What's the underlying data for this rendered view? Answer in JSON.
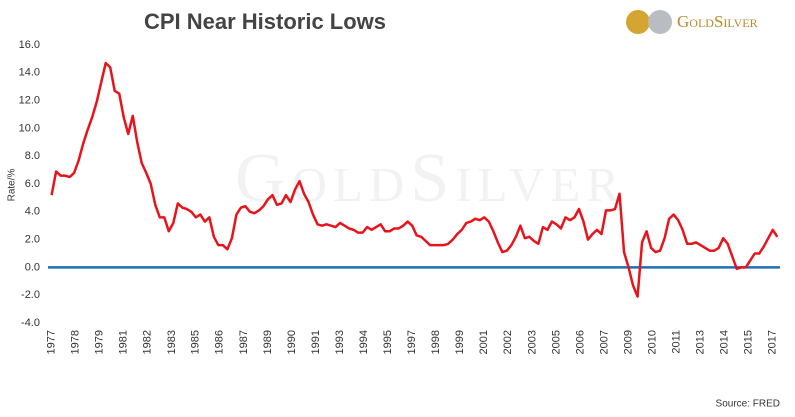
{
  "chart_data": {
    "type": "line",
    "title": "CPI Near Historic Lows",
    "y_label": "Rate/%",
    "source": "Source: FRED",
    "logo": "GoldSilver",
    "watermark": "GoldSilver",
    "color": "#e8141c",
    "zero_line_color": "#1f6fb5",
    "x": [
      1977,
      1977.25,
      1977.5,
      1977.75,
      1978,
      1978.25,
      1978.5,
      1978.75,
      1979,
      1979.25,
      1979.5,
      1979.75,
      1980,
      1980.25,
      1980.5,
      1980.75,
      1981,
      1981.25,
      1981.5,
      1981.75,
      1982,
      1982.25,
      1982.5,
      1982.75,
      1983,
      1983.25,
      1983.5,
      1983.75,
      1984,
      1984.25,
      1984.5,
      1984.75,
      1985,
      1985.25,
      1985.5,
      1985.75,
      1986,
      1986.25,
      1986.5,
      1986.75,
      1987,
      1987.25,
      1987.5,
      1987.75,
      1988,
      1988.25,
      1988.5,
      1988.75,
      1989,
      1989.25,
      1989.5,
      1989.75,
      1990,
      1990.25,
      1990.5,
      1990.75,
      1991,
      1991.25,
      1991.5,
      1991.75,
      1992,
      1992.25,
      1992.5,
      1992.75,
      1993,
      1993.25,
      1993.5,
      1993.75,
      1994,
      1994.25,
      1994.5,
      1994.75,
      1995,
      1995.25,
      1995.5,
      1995.75,
      1996,
      1996.25,
      1996.5,
      1996.75,
      1997,
      1997.25,
      1997.5,
      1997.75,
      1998,
      1998.25,
      1998.5,
      1998.75,
      1999,
      1999.25,
      1999.5,
      1999.75,
      2000,
      2000.25,
      2000.5,
      2000.75,
      2001,
      2001.25,
      2001.5,
      2001.75,
      2002,
      2002.25,
      2002.5,
      2002.75,
      2003,
      2003.25,
      2003.5,
      2003.75,
      2004,
      2004.25,
      2004.5,
      2004.75,
      2005,
      2005.25,
      2005.5,
      2005.75,
      2006,
      2006.25,
      2006.5,
      2006.75,
      2007,
      2007.25,
      2007.5,
      2007.75,
      2008,
      2008.25,
      2008.5,
      2008.75,
      2009,
      2009.25,
      2009.5,
      2009.75,
      2010,
      2010.25,
      2010.5,
      2010.75,
      2011,
      2011.25,
      2011.5,
      2011.75,
      2012,
      2012.25,
      2012.5,
      2012.75,
      2013,
      2013.25,
      2013.5,
      2013.75,
      2014,
      2014.25,
      2014.5,
      2014.75,
      2015,
      2015.25,
      2015.5,
      2015.75,
      2016,
      2016.25,
      2016.5,
      2016.75,
      2017,
      2017.25
    ],
    "values": [
      5.2,
      6.9,
      6.6,
      6.6,
      6.5,
      6.8,
      7.7,
      8.9,
      9.9,
      10.8,
      11.9,
      13.3,
      14.7,
      14.4,
      12.7,
      12.5,
      10.8,
      9.6,
      10.9,
      9.0,
      7.5,
      6.8,
      6.0,
      4.5,
      3.6,
      3.6,
      2.6,
      3.2,
      4.6,
      4.3,
      4.2,
      4.0,
      3.6,
      3.8,
      3.3,
      3.6,
      2.2,
      1.6,
      1.6,
      1.3,
      2.1,
      3.8,
      4.3,
      4.4,
      4.0,
      3.9,
      4.1,
      4.4,
      4.9,
      5.2,
      4.5,
      4.6,
      5.2,
      4.7,
      5.6,
      6.2,
      5.3,
      4.7,
      3.8,
      3.1,
      3.0,
      3.1,
      3.0,
      2.9,
      3.2,
      3.0,
      2.8,
      2.7,
      2.5,
      2.5,
      2.9,
      2.7,
      2.9,
      3.1,
      2.6,
      2.6,
      2.8,
      2.8,
      3.0,
      3.3,
      3.0,
      2.3,
      2.2,
      1.9,
      1.6,
      1.6,
      1.6,
      1.6,
      1.7,
      2.0,
      2.4,
      2.7,
      3.2,
      3.3,
      3.5,
      3.4,
      3.6,
      3.3,
      2.6,
      1.8,
      1.1,
      1.2,
      1.6,
      2.2,
      3.0,
      2.1,
      2.2,
      1.9,
      1.7,
      2.9,
      2.7,
      3.3,
      3.1,
      2.8,
      3.6,
      3.4,
      3.6,
      4.2,
      3.3,
      2.0,
      2.4,
      2.7,
      2.4,
      4.1,
      4.1,
      4.2,
      5.3,
      1.1,
      0.0,
      -1.3,
      -2.1,
      1.8,
      2.6,
      1.4,
      1.1,
      1.2,
      2.1,
      3.5,
      3.8,
      3.4,
      2.7,
      1.7,
      1.7,
      1.8,
      1.6,
      1.4,
      1.2,
      1.2,
      1.4,
      2.1,
      1.7,
      0.8,
      -0.1,
      0.0,
      0.0,
      0.5,
      1.0,
      1.0,
      1.5,
      2.1,
      2.7,
      2.2
    ],
    "xlim": [
      1976.8,
      2017.4
    ],
    "xticks": [
      1977,
      {
        "value": 1978.33,
        "label": "1978"
      },
      {
        "value": 1979.67,
        "label": "1979"
      },
      1981,
      {
        "value": 1982.33,
        "label": "1982"
      },
      {
        "value": 1983.67,
        "label": "1983"
      },
      1985,
      {
        "value": 1986.33,
        "label": "1986"
      },
      {
        "value": 1987.67,
        "label": "1987"
      },
      1989,
      {
        "value": 1990.33,
        "label": "1990"
      },
      {
        "value": 1991.67,
        "label": "1991"
      },
      1993,
      {
        "value": 1994.33,
        "label": "1994"
      },
      {
        "value": 1995.67,
        "label": "1995"
      },
      1997,
      {
        "value": 1998.33,
        "label": "1998"
      },
      {
        "value": 1999.67,
        "label": "1999"
      },
      2001,
      {
        "value": 2002.33,
        "label": "2002"
      },
      {
        "value": 2003.67,
        "label": "2003"
      },
      2005,
      {
        "value": 2006.33,
        "label": "2006"
      },
      {
        "value": 2007.67,
        "label": "2007"
      },
      2009,
      {
        "value": 2010.33,
        "label": "2010"
      },
      {
        "value": 2011.67,
        "label": "2011"
      },
      2013,
      {
        "value": 2014.33,
        "label": "2014"
      },
      {
        "value": 2015.67,
        "label": "2015"
      },
      2017
    ],
    "ylim": [
      -4,
      16
    ],
    "yticks": [
      {
        "value": 16,
        "label": "16.0"
      },
      {
        "value": 14,
        "label": "14.0"
      },
      {
        "value": 12,
        "label": "12.0"
      },
      {
        "value": 10,
        "label": "10.0"
      },
      {
        "value": 8,
        "label": "8.0"
      },
      {
        "value": 6,
        "label": "6.0"
      },
      {
        "value": 4,
        "label": "4.0"
      },
      {
        "value": 2,
        "label": "2.0"
      },
      {
        "value": 0,
        "label": "0.0"
      },
      {
        "value": -2,
        "label": "-2.0"
      },
      {
        "value": -4,
        "label": "-4.0"
      }
    ]
  }
}
